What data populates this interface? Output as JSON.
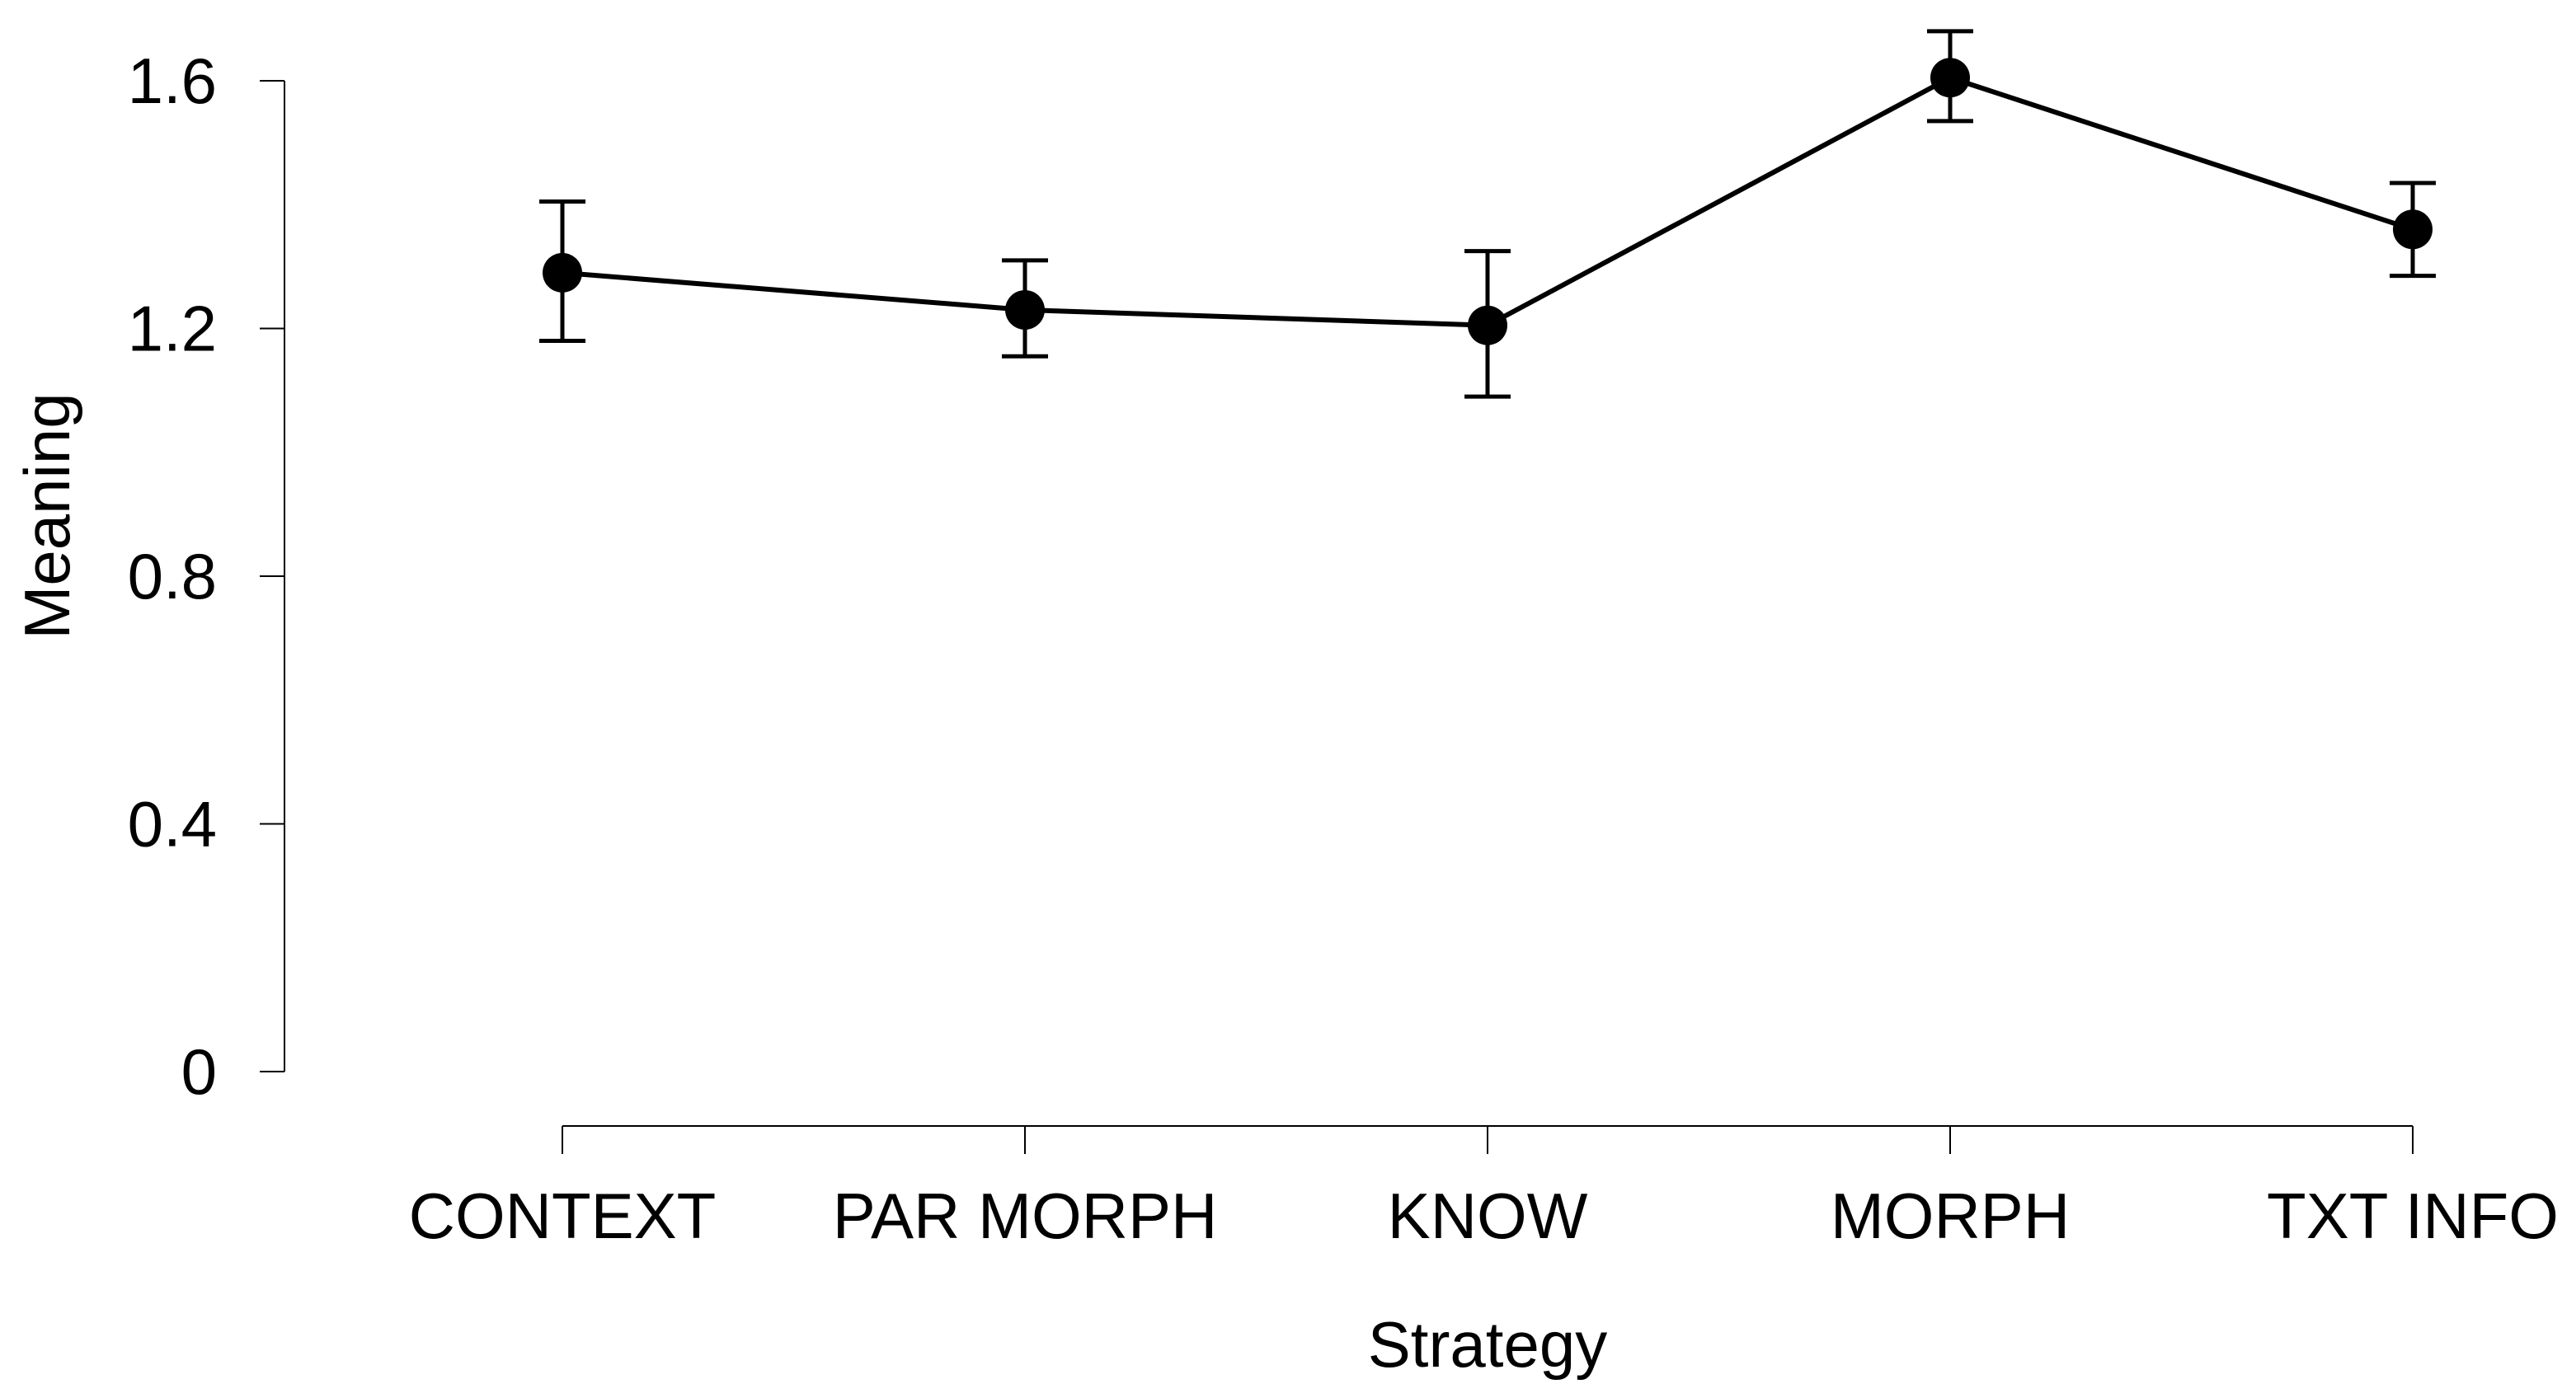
{
  "chart_data": {
    "type": "line",
    "categories": [
      "CONTEXT",
      "PAR MORPH",
      "KNOW",
      "MORPH",
      "TXT INFO"
    ],
    "values": [
      1.29,
      1.23,
      1.205,
      1.605,
      1.36
    ],
    "error_bars": [
      {
        "low": 1.18,
        "high": 1.405
      },
      {
        "low": 1.155,
        "high": 1.31
      },
      {
        "low": 1.09,
        "high": 1.325
      },
      {
        "low": 1.535,
        "high": 1.68
      },
      {
        "low": 1.285,
        "high": 1.435
      }
    ],
    "xlabel": "Strategy",
    "ylabel": "Meaning",
    "ylim": [
      0,
      1.6
    ],
    "yticks": [
      "0",
      "0.4",
      "0.8",
      "1.2",
      "1.6"
    ],
    "ytick_values": [
      0,
      0.4,
      0.8,
      1.2,
      1.6
    ],
    "grid": false,
    "colors": {
      "line": "#000000",
      "marker": "#000000"
    }
  }
}
